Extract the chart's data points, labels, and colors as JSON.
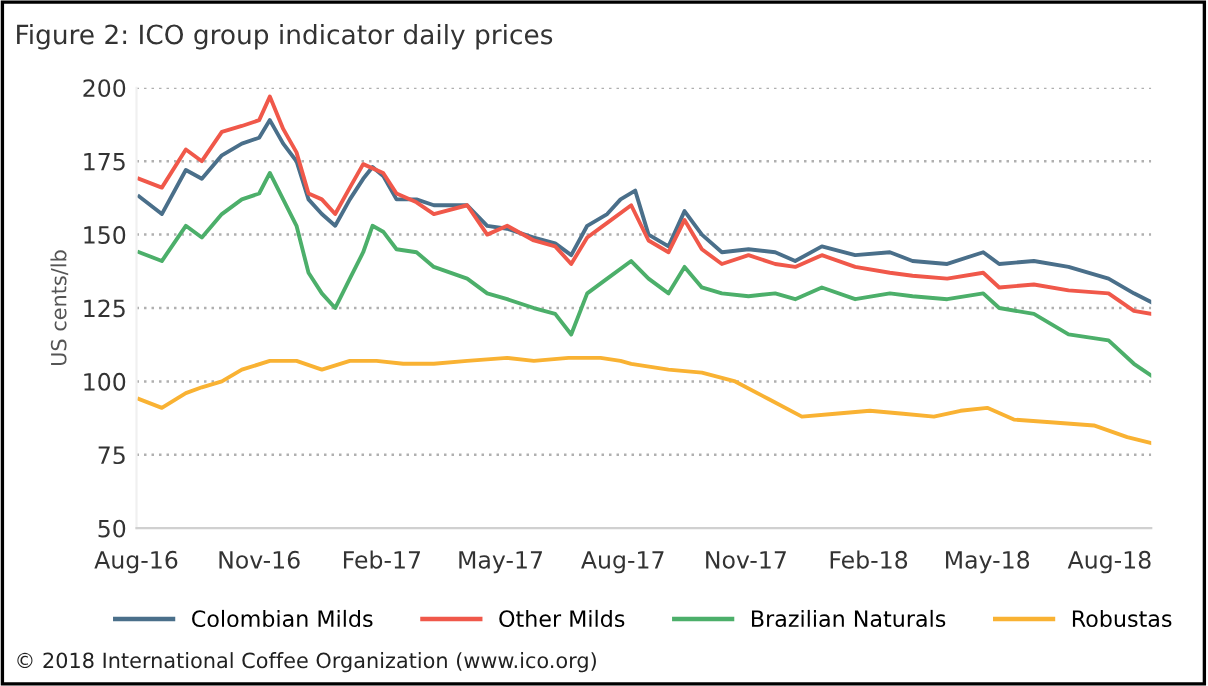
{
  "chart_data": {
    "type": "line",
    "title": "Figure 2: ICO group indicator daily prices",
    "ylabel": "US cents/lb",
    "series": [
      {
        "name": "Colombian Milds",
        "color": "#4a6f8a",
        "x": [
          "2016-08-03",
          "2016-08-20",
          "2016-09-07",
          "2016-09-19",
          "2016-10-04",
          "2016-10-19",
          "2016-11-01",
          "2016-11-09",
          "2016-11-19",
          "2016-11-29",
          "2016-12-08",
          "2016-12-18",
          "2016-12-28",
          "2017-01-08",
          "2017-01-18",
          "2017-01-25",
          "2017-02-02",
          "2017-02-12",
          "2017-02-27",
          "2017-03-12",
          "2017-04-06",
          "2017-04-21",
          "2017-05-06",
          "2017-05-26",
          "2017-06-11",
          "2017-06-23",
          "2017-07-05",
          "2017-07-20",
          "2017-07-30",
          "2017-08-10",
          "2017-08-20",
          "2017-09-04",
          "2017-09-16",
          "2017-09-29",
          "2017-10-14",
          "2017-11-03",
          "2017-11-23",
          "2017-12-08",
          "2017-12-28",
          "2018-01-22",
          "2018-02-17",
          "2018-03-06",
          "2018-04-01",
          "2018-04-28",
          "2018-05-10",
          "2018-06-05",
          "2018-07-01",
          "2018-07-31",
          "2018-08-19",
          "2018-09-01"
        ],
        "values": [
          163,
          157,
          172,
          169,
          177,
          181,
          183,
          189,
          181,
          175,
          162,
          157,
          153,
          162,
          169,
          173,
          170,
          162,
          162,
          160,
          160,
          153,
          152,
          149,
          147,
          143,
          153,
          157,
          162,
          165,
          150,
          146,
          158,
          150,
          144,
          145,
          144,
          141,
          146,
          143,
          144,
          141,
          140,
          144,
          140,
          141,
          139,
          135,
          130,
          127
        ]
      },
      {
        "name": "Other Milds",
        "color": "#f0584a",
        "x": [
          "2016-08-03",
          "2016-08-20",
          "2016-09-07",
          "2016-09-19",
          "2016-10-04",
          "2016-10-19",
          "2016-11-01",
          "2016-11-09",
          "2016-11-19",
          "2016-11-29",
          "2016-12-08",
          "2016-12-18",
          "2016-12-28",
          "2017-01-08",
          "2017-01-18",
          "2017-02-02",
          "2017-02-12",
          "2017-02-27",
          "2017-03-12",
          "2017-04-06",
          "2017-04-21",
          "2017-05-06",
          "2017-05-26",
          "2017-06-11",
          "2017-06-23",
          "2017-07-05",
          "2017-07-20",
          "2017-08-07",
          "2017-08-20",
          "2017-09-04",
          "2017-09-16",
          "2017-09-29",
          "2017-10-14",
          "2017-11-03",
          "2017-11-23",
          "2017-12-08",
          "2017-12-28",
          "2018-01-22",
          "2018-02-17",
          "2018-03-06",
          "2018-04-01",
          "2018-04-28",
          "2018-05-10",
          "2018-06-05",
          "2018-07-01",
          "2018-07-31",
          "2018-08-19",
          "2018-09-01"
        ],
        "values": [
          169,
          166,
          179,
          175,
          185,
          187,
          189,
          197,
          186,
          178,
          164,
          162,
          157,
          166,
          174,
          171,
          164,
          161,
          157,
          160,
          150,
          153,
          148,
          146,
          140,
          149,
          154,
          160,
          148,
          144,
          155,
          145,
          140,
          143,
          140,
          139,
          143,
          139,
          137,
          136,
          135,
          137,
          132,
          133,
          131,
          130,
          124,
          123
        ]
      },
      {
        "name": "Brazilian Naturals",
        "color": "#4caf6a",
        "x": [
          "2016-08-03",
          "2016-08-20",
          "2016-09-07",
          "2016-09-19",
          "2016-10-04",
          "2016-10-19",
          "2016-11-01",
          "2016-11-09",
          "2016-11-19",
          "2016-11-29",
          "2016-12-08",
          "2016-12-18",
          "2016-12-28",
          "2017-01-08",
          "2017-01-18",
          "2017-01-25",
          "2017-02-02",
          "2017-02-12",
          "2017-02-27",
          "2017-03-12",
          "2017-04-06",
          "2017-04-21",
          "2017-05-06",
          "2017-05-26",
          "2017-06-11",
          "2017-06-23",
          "2017-07-05",
          "2017-07-20",
          "2017-08-07",
          "2017-08-20",
          "2017-09-04",
          "2017-09-16",
          "2017-09-29",
          "2017-10-14",
          "2017-11-03",
          "2017-11-23",
          "2017-12-08",
          "2017-12-28",
          "2018-01-22",
          "2018-02-17",
          "2018-03-06",
          "2018-04-01",
          "2018-04-28",
          "2018-05-10",
          "2018-06-05",
          "2018-07-01",
          "2018-07-31",
          "2018-08-19",
          "2018-09-01"
        ],
        "values": [
          144,
          141,
          153,
          149,
          157,
          162,
          164,
          171,
          162,
          153,
          137,
          130,
          125,
          135,
          144,
          153,
          151,
          145,
          144,
          139,
          135,
          130,
          128,
          125,
          123,
          116,
          130,
          135,
          141,
          135,
          130,
          139,
          132,
          130,
          129,
          130,
          128,
          132,
          128,
          130,
          129,
          128,
          130,
          125,
          123,
          116,
          114,
          106,
          102
        ]
      },
      {
        "name": "Robustas",
        "color": "#f9b233",
        "x": [
          "2016-08-03",
          "2016-08-20",
          "2016-09-07",
          "2016-09-19",
          "2016-10-04",
          "2016-10-19",
          "2016-11-09",
          "2016-11-29",
          "2016-12-18",
          "2017-01-08",
          "2017-01-28",
          "2017-02-17",
          "2017-03-12",
          "2017-04-06",
          "2017-05-06",
          "2017-05-26",
          "2017-06-21",
          "2017-07-15",
          "2017-07-30",
          "2017-08-07",
          "2017-09-04",
          "2017-09-29",
          "2017-10-24",
          "2017-11-18",
          "2017-12-13",
          "2018-01-07",
          "2018-02-02",
          "2018-02-27",
          "2018-03-22",
          "2018-04-11",
          "2018-05-01",
          "2018-05-21",
          "2018-06-20",
          "2018-07-20",
          "2018-08-14",
          "2018-09-01"
        ],
        "values": [
          94,
          91,
          96,
          98,
          100,
          104,
          107,
          107,
          104,
          107,
          107,
          106,
          106,
          107,
          108,
          107,
          108,
          108,
          107,
          106,
          104,
          103,
          100,
          94,
          88,
          89,
          90,
          89,
          88,
          90,
          91,
          87,
          86,
          85,
          81,
          79
        ]
      }
    ],
    "xlim": [
      "2016-08-01",
      "2018-09-01"
    ],
    "xticks": [
      {
        "value": "2016-08-01",
        "label": "Aug-16"
      },
      {
        "value": "2016-11-01",
        "label": "Nov-16"
      },
      {
        "value": "2017-02-01",
        "label": "Feb-17"
      },
      {
        "value": "2017-05-01",
        "label": "May-17"
      },
      {
        "value": "2017-08-01",
        "label": "Aug-17"
      },
      {
        "value": "2017-11-01",
        "label": "Nov-17"
      },
      {
        "value": "2018-02-01",
        "label": "Feb-18"
      },
      {
        "value": "2018-05-01",
        "label": "May-18"
      },
      {
        "value": "2018-08-01",
        "label": "Aug-18"
      }
    ],
    "ylim": [
      50,
      200
    ],
    "yticks": [
      50,
      75,
      100,
      125,
      150,
      175,
      200
    ],
    "grid": "y",
    "legend": "bottom",
    "line_style": "solid",
    "marker": "none",
    "annotations": [
      "© 2018 International Coffee Organization (www.ico.org)"
    ]
  }
}
